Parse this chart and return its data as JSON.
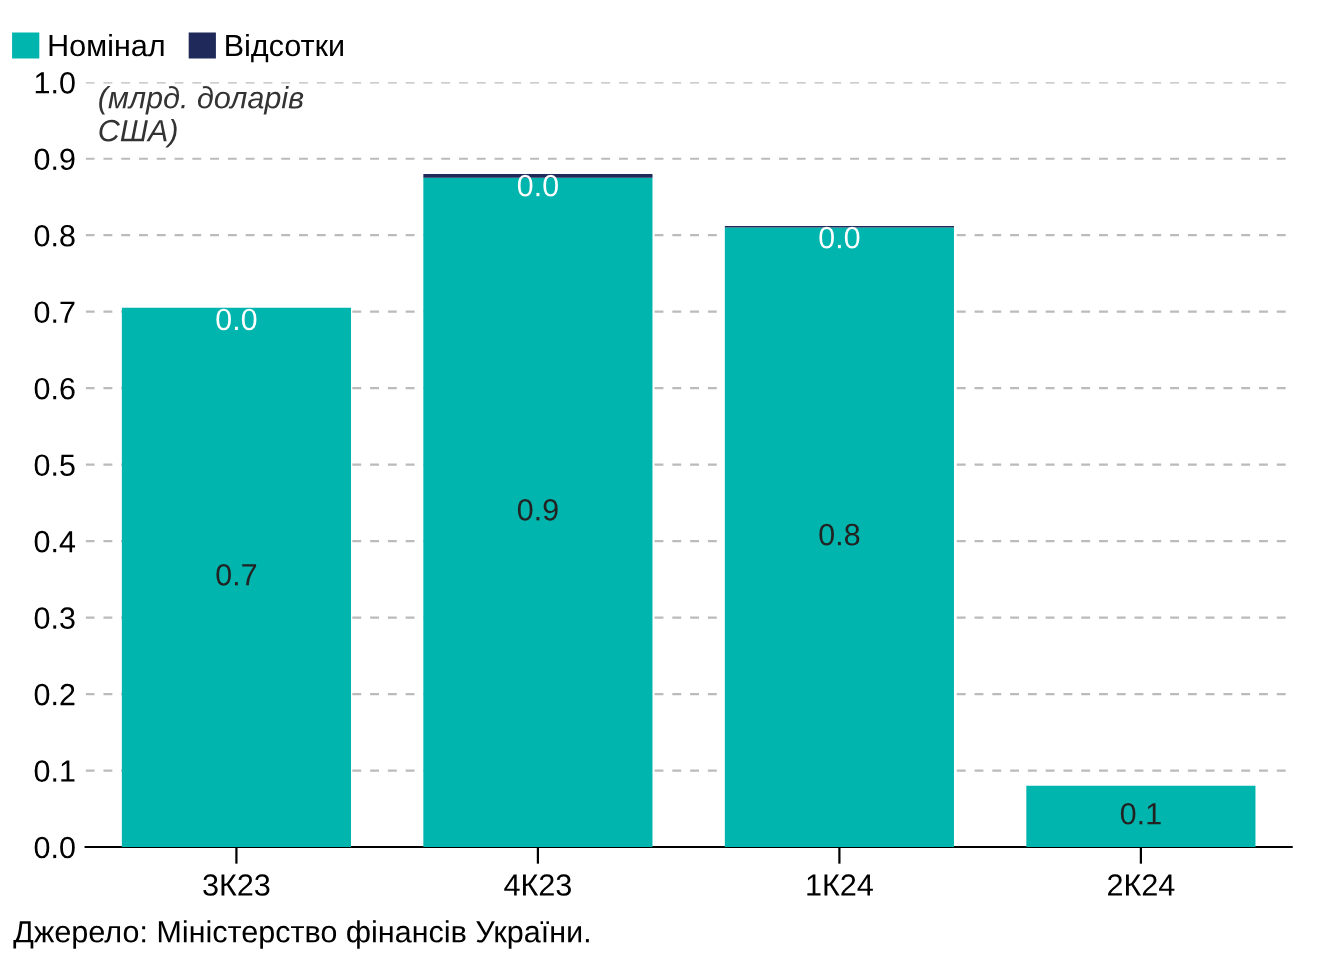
{
  "chart_data": {
    "type": "bar",
    "stacked": true,
    "ylabel": "(млрд. доларів\nСША)",
    "categories": [
      "3К23",
      "4К23",
      "1К24",
      "2К24"
    ],
    "series": [
      {
        "name": "Номінал",
        "color": "#00b5ad",
        "values": [
          0.705,
          0.875,
          0.81,
          0.08
        ],
        "value_labels": [
          "0.7",
          "0.9",
          "0.8",
          "0.1"
        ]
      },
      {
        "name": "Відсотки",
        "color": "#1f2a5a",
        "values": [
          0.0,
          0.005,
          0.002,
          0.0
        ],
        "value_labels": [
          "0.0",
          "0.0",
          "0.0",
          null
        ]
      }
    ],
    "ylim": [
      0,
      1.0
    ],
    "yticks": [
      {
        "value": 0,
        "label": "0.0"
      },
      0.1,
      0.2,
      0.3,
      0.4,
      0.5,
      0.6,
      0.7,
      0.8,
      0.9,
      {
        "value": 1.0,
        "label": "1.0"
      }
    ],
    "grid": "y",
    "legend": "top left",
    "annotations": [
      "Джерело: Міністерство фінансів України."
    ]
  }
}
